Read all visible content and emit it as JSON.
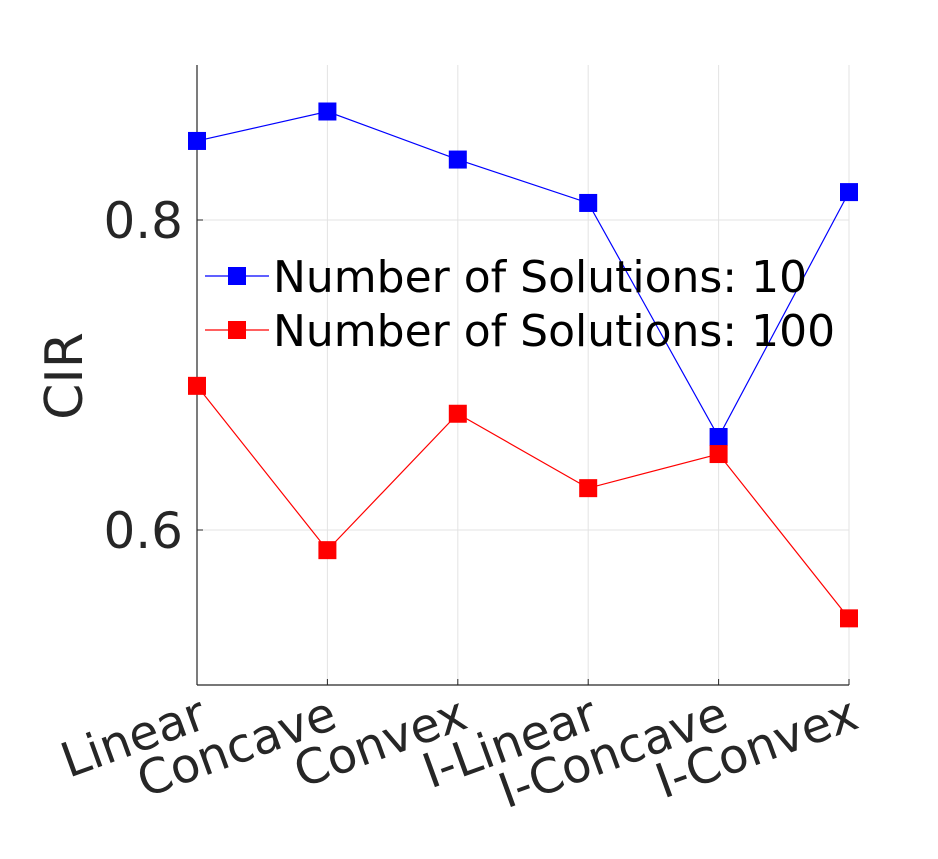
{
  "chart_data": {
    "type": "line",
    "title": "",
    "xlabel": "",
    "ylabel": "CIR",
    "categories": [
      "Linear",
      "Concave",
      "Convex",
      "I-Linear",
      "I-Concave",
      "I-Convex"
    ],
    "series": [
      {
        "name": "Number of Solutions: 10",
        "color": "#0000ff",
        "marker": "square",
        "values": [
          0.851,
          0.87,
          0.839,
          0.811,
          0.66,
          0.818
        ]
      },
      {
        "name": "Number of Solutions: 100",
        "color": "#ff0000",
        "marker": "square",
        "values": [
          0.693,
          0.587,
          0.675,
          0.627,
          0.649,
          0.543
        ]
      }
    ],
    "ylim": [
      0.5,
      0.9
    ],
    "yticks": [
      0.6,
      0.8
    ],
    "ytick_labels": [
      "0.6",
      "0.8"
    ],
    "grid": true,
    "legend_position": "upper-center"
  }
}
